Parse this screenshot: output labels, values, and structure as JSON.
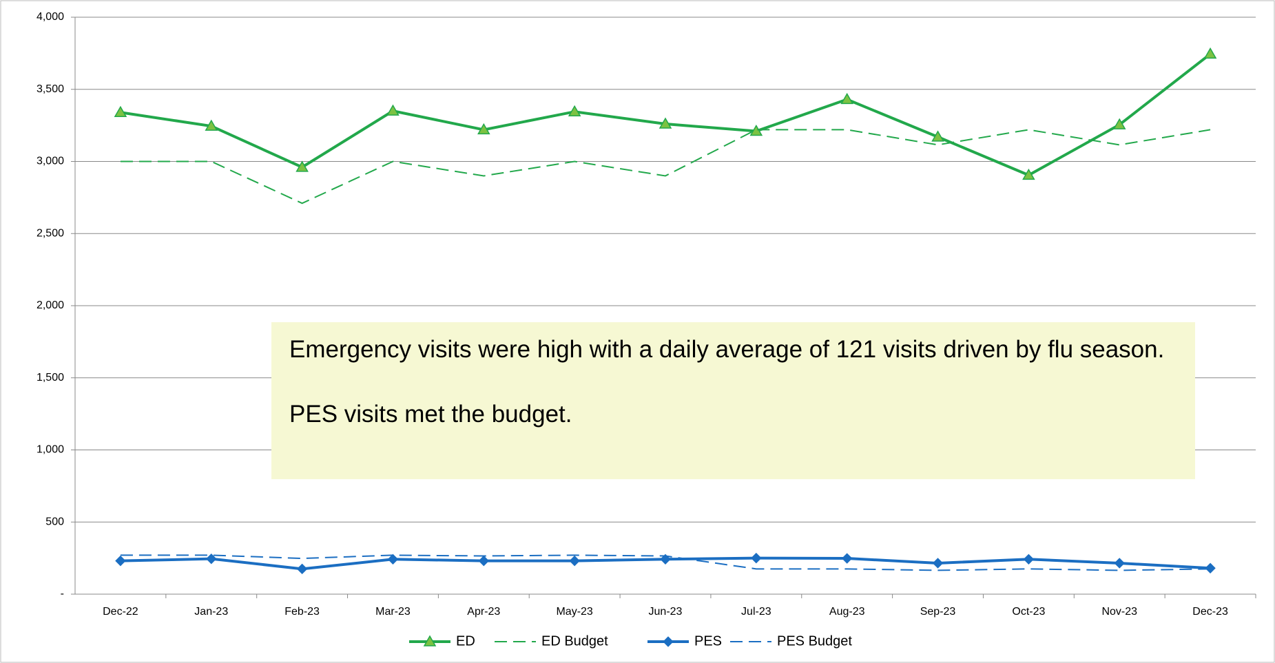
{
  "chart_data": {
    "type": "line",
    "categories": [
      "Dec-22",
      "Jan-23",
      "Feb-23",
      "Mar-23",
      "Apr-23",
      "May-23",
      "Jun-23",
      "Jul-23",
      "Aug-23",
      "Sep-23",
      "Oct-23",
      "Nov-23",
      "Dec-23"
    ],
    "series": [
      {
        "name": "ED",
        "color": "#22a84b",
        "dash": false,
        "marker": "triangle",
        "values": [
          3340,
          3245,
          2960,
          3350,
          3220,
          3345,
          3260,
          3210,
          3430,
          3170,
          2905,
          3255,
          3745
        ]
      },
      {
        "name": "ED Budget",
        "color": "#22a84b",
        "dash": true,
        "values": [
          3000,
          3000,
          2710,
          3000,
          2900,
          3000,
          2900,
          3220,
          3220,
          3115,
          3220,
          3115,
          3220
        ]
      },
      {
        "name": "PES",
        "color": "#1b6ec2",
        "dash": false,
        "marker": "diamond",
        "values": [
          231,
          245,
          175,
          242,
          231,
          231,
          242,
          250,
          248,
          215,
          242,
          215,
          180
        ]
      },
      {
        "name": "PES Budget",
        "color": "#1b6ec2",
        "dash": true,
        "values": [
          270,
          270,
          248,
          270,
          265,
          270,
          265,
          175,
          175,
          165,
          175,
          165,
          175
        ]
      }
    ],
    "ylim": [
      0,
      4000
    ],
    "yticks": [
      {
        "value": 0,
        "label": "-"
      },
      500,
      {
        "value": 1000,
        "label": "1,000"
      },
      {
        "value": 1500,
        "label": "1,500"
      },
      {
        "value": 2000,
        "label": "2,000"
      },
      {
        "value": 2500,
        "label": "2,500"
      },
      {
        "value": 3000,
        "label": "3,000"
      },
      {
        "value": 3500,
        "label": "3,500"
      },
      {
        "value": 4000,
        "label": "4,000"
      }
    ],
    "grid": true,
    "legend": "bottom",
    "annotations": [
      "Emergency visits were high with a daily average of 121 visits driven by flu season.",
      "PES visits met the budget."
    ]
  }
}
